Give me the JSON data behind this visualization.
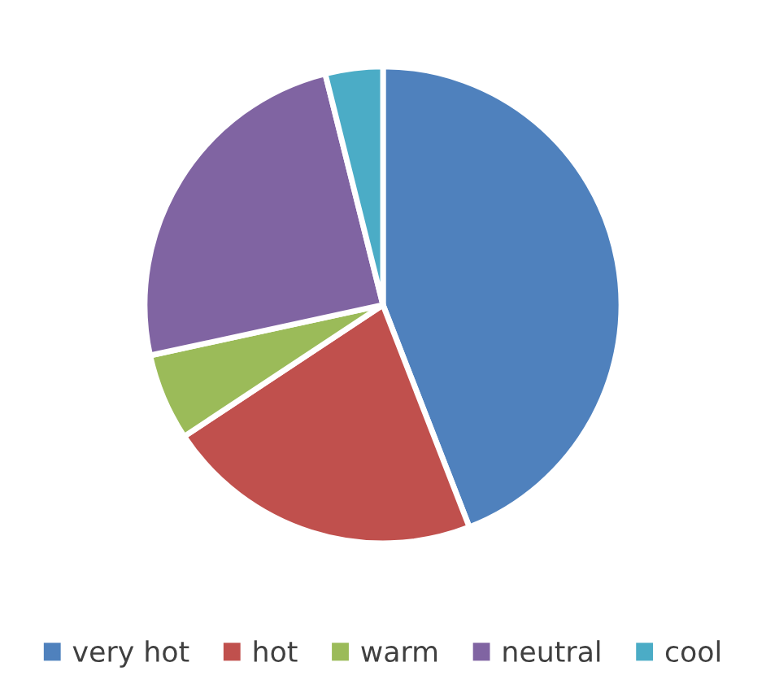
{
  "chart_data": {
    "type": "pie",
    "categories": [
      "very hot",
      "hot",
      "warm",
      "neutral",
      "cool"
    ],
    "values": [
      44.1,
      21.6,
      5.9,
      24.5,
      3.9
    ],
    "colors": [
      "#4f81bd",
      "#c0504d",
      "#9bbb59",
      "#8064a2",
      "#4bacc6"
    ],
    "legend": "bottom"
  }
}
